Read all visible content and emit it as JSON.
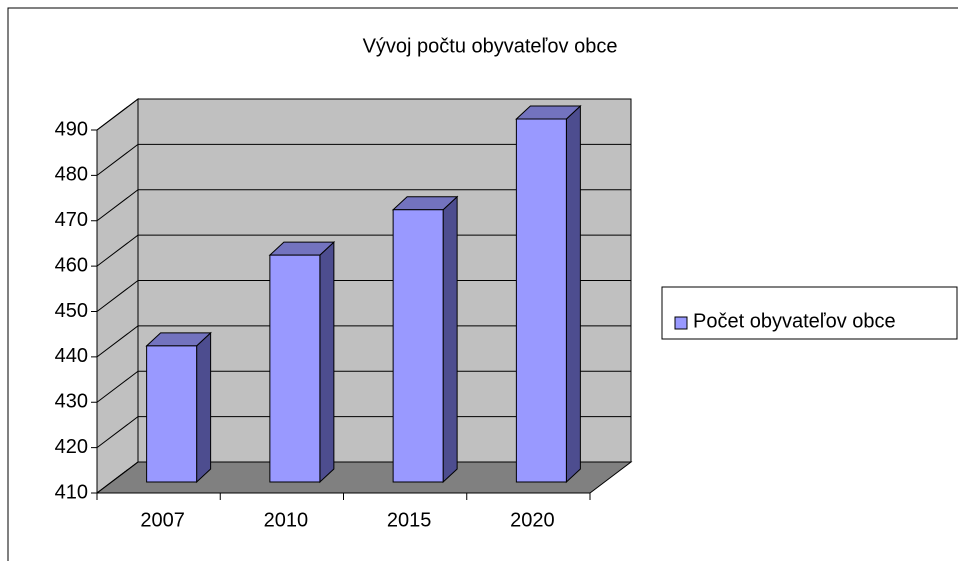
{
  "chart_data": {
    "type": "bar3d",
    "title": "Vývoj počtu obyvateľov obce",
    "categories": [
      "2007",
      "2010",
      "2015",
      "2020"
    ],
    "series": [
      {
        "name": "Počet obyvateľov obce",
        "color": "#9999ff",
        "values": [
          440,
          460,
          470,
          490
        ]
      }
    ],
    "ylim": [
      410,
      490
    ],
    "yticks": [
      410,
      420,
      430,
      440,
      450,
      460,
      470,
      480,
      490
    ],
    "grid": true,
    "legend": "right"
  }
}
